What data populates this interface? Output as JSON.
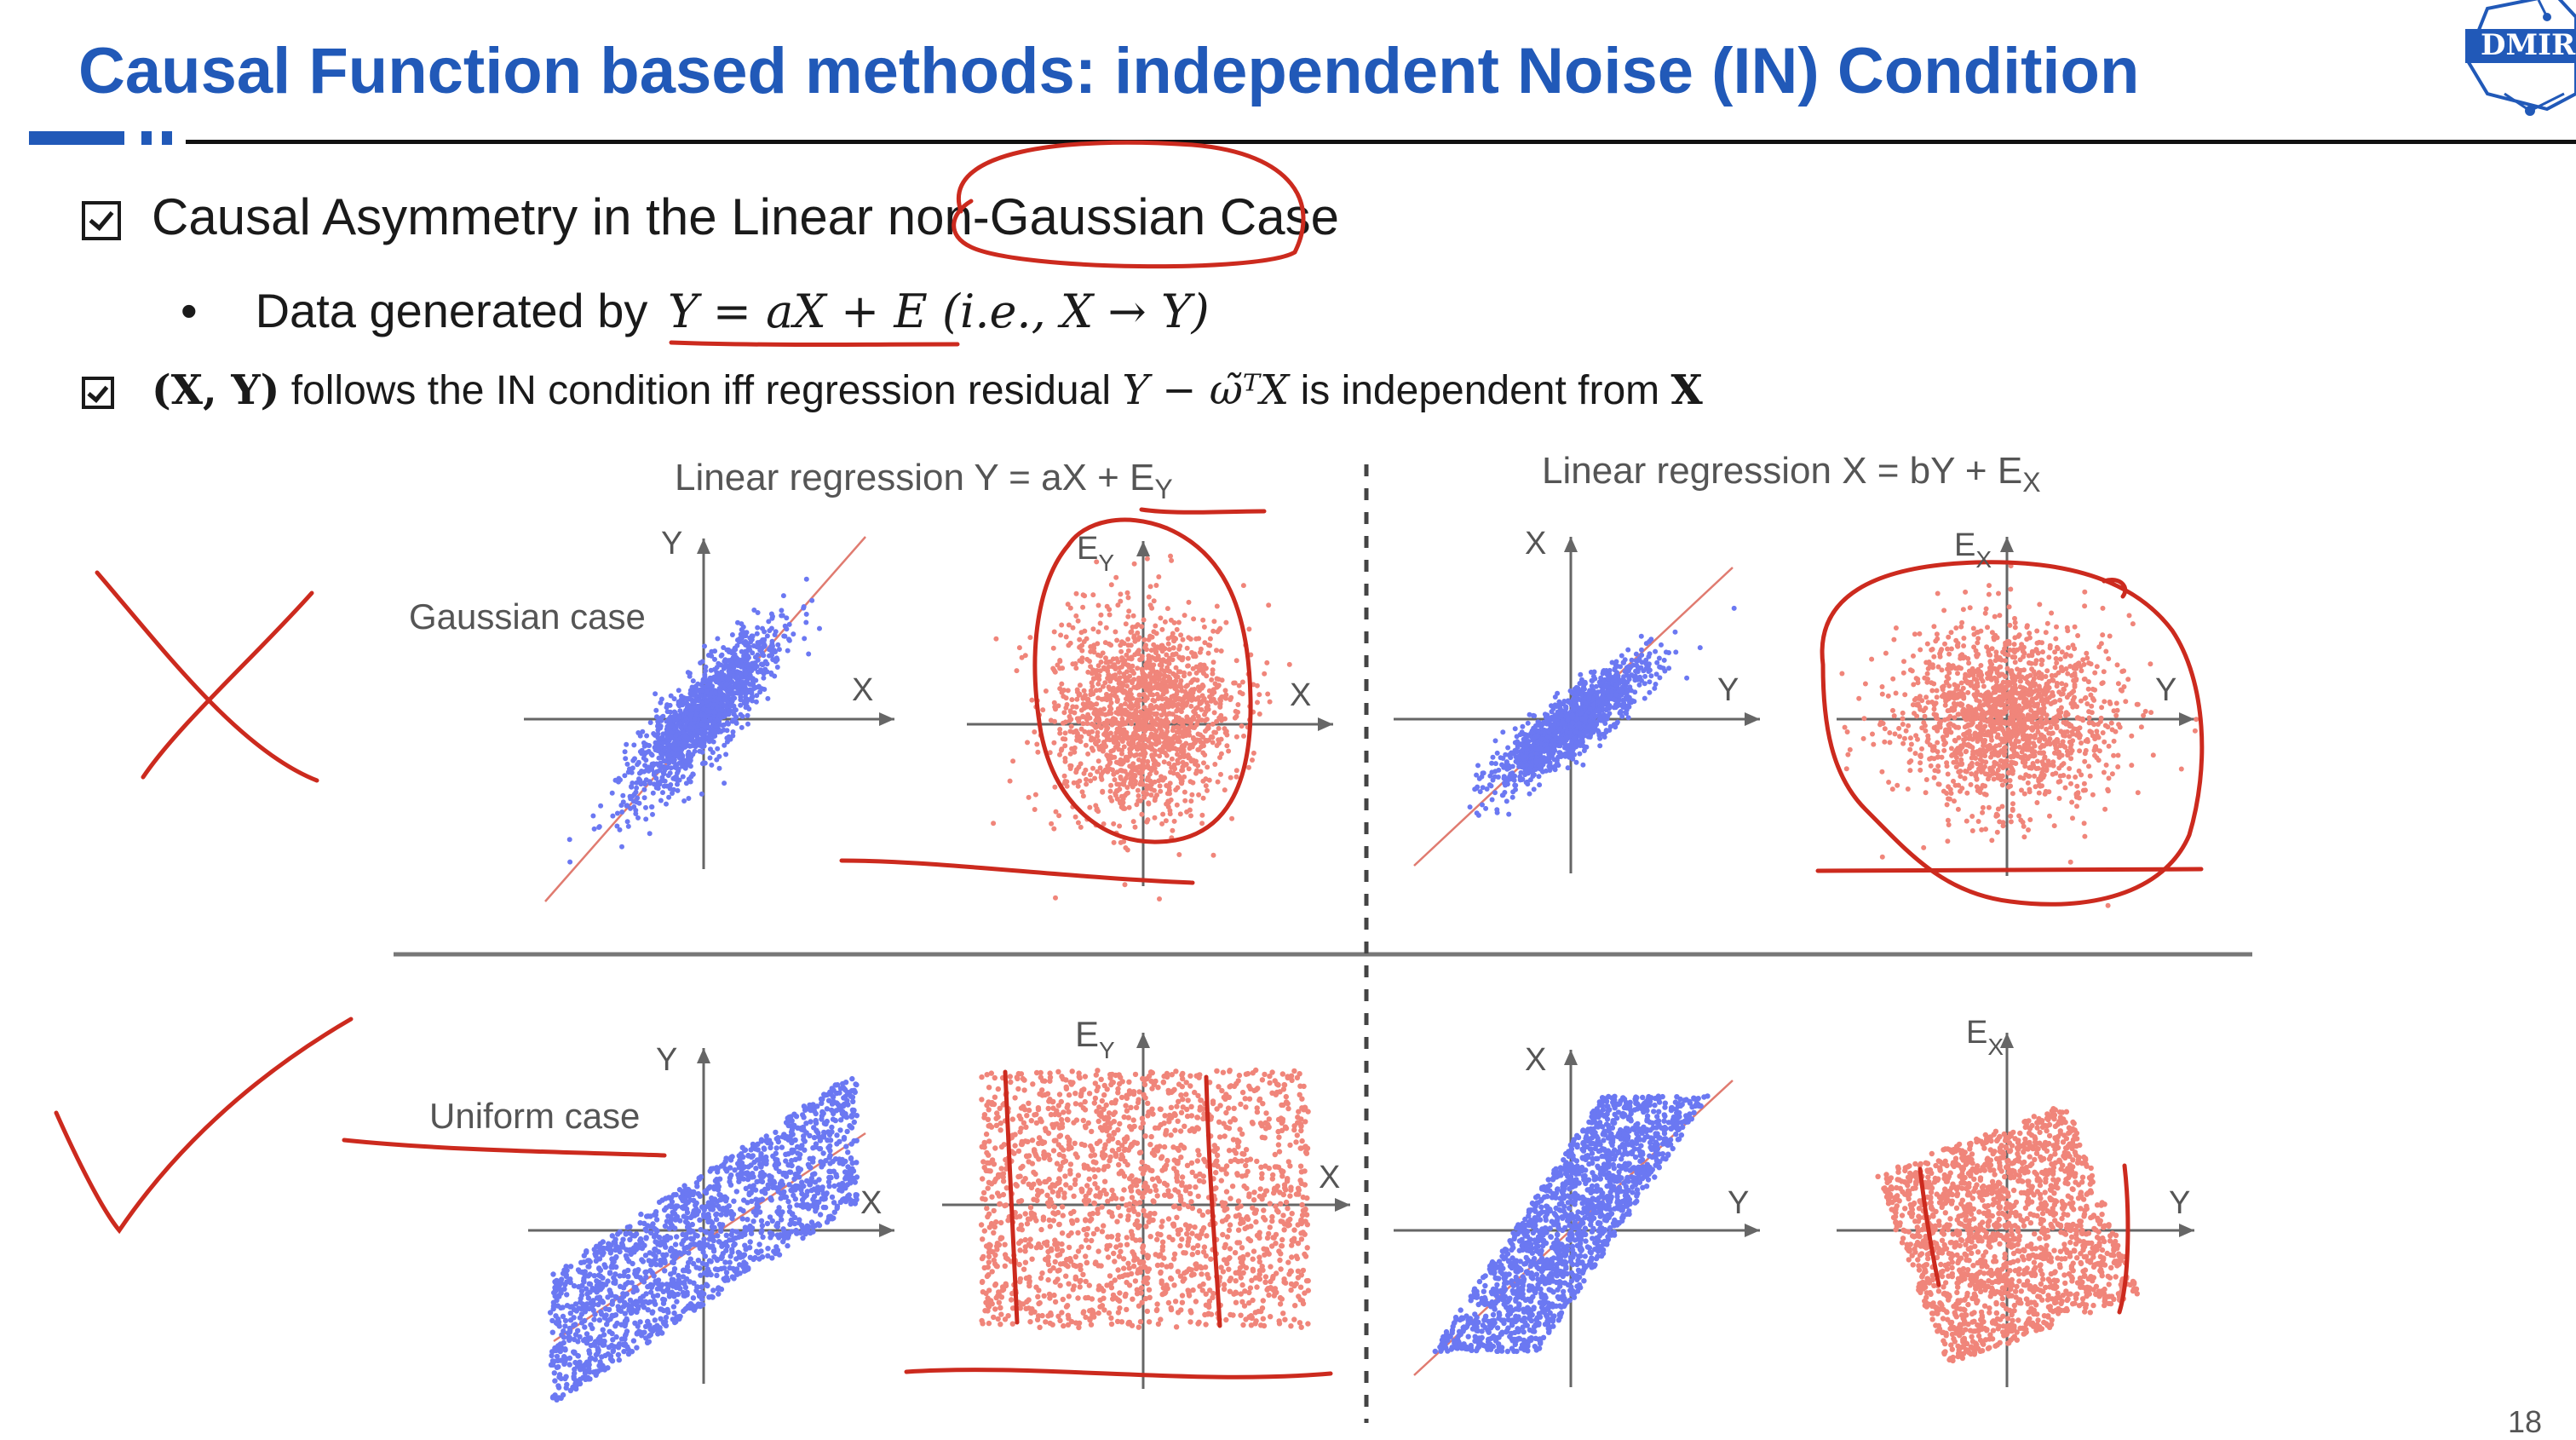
{
  "slide": {
    "title": "Causal Function based methods: independent Noise (IN) Condition",
    "logo_text": "DMIR",
    "page_number": "18"
  },
  "bullets": {
    "b1_text": "Causal Asymmetry in the Linear non-Gaussian Case",
    "b1_sub_prefix": "Data generated by",
    "b1_sub_math": "Y = aX + E (i.e., X → Y)",
    "b2_math": "(X, Y)",
    "b2_text": "follows the IN condition iff regression residual",
    "b2_math2": "Y − ω̃ᵀX",
    "b2_text2": "is independent from",
    "b2_math3": "X"
  },
  "figure": {
    "left_header": "Linear regression Y = aX + E",
    "left_header_sub": "Y",
    "right_header": "Linear regression X = bY + E",
    "right_header_sub": "X",
    "row_labels": [
      "Gaussian case",
      "Uniform case"
    ],
    "axis": {
      "X": "X",
      "Y": "Y",
      "E": "E",
      "sub_Y": "Y",
      "sub_X": "X"
    },
    "colors": {
      "data_points": "#6b78f2",
      "residual_points": "#f0857a",
      "fit_line": "#e07b70",
      "annotation": "#cc2a1e",
      "title_blue": "#2159b8"
    }
  }
}
